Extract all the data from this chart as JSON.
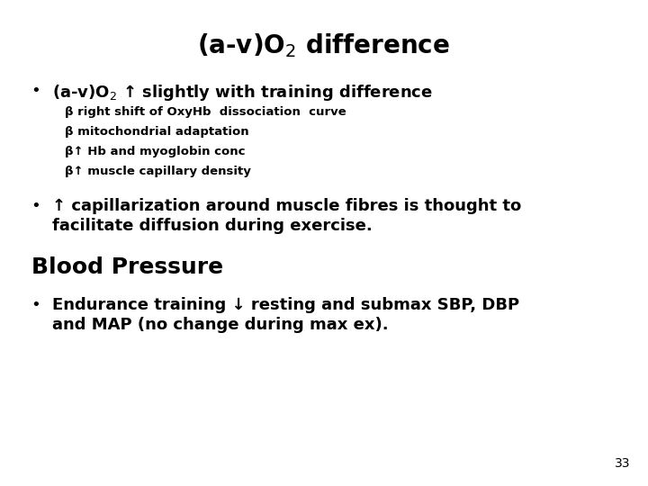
{
  "title": "(a-v)O$_2$ difference",
  "title_fontsize": 20,
  "title_fontweight": "bold",
  "bg_color": "#ffffff",
  "text_color": "#000000",
  "page_number": "33",
  "bullet1": "(a-v)O$_2$ ↑ slightly with training difference",
  "sub1": "β right shift of OxyHb  dissociation  curve",
  "sub2": "β mitochondrial adaptation",
  "sub3": "β↑ Hb and myoglobin conc",
  "sub4": "β↑ muscle capillary density",
  "bullet2_line1": "↑ capillarization around muscle fibres is thought to",
  "bullet2_line2": "facilitate diffusion during exercise.",
  "section": "Blood Pressure",
  "bullet3_line1": "Endurance training ↓ resting and submax SBP, DBP",
  "bullet3_line2": "and MAP (no change during max ex).",
  "bullet1_fontsize": 13,
  "sub_fontsize": 9.5,
  "bullet2_fontsize": 13,
  "section_fontsize": 18,
  "bullet3_fontsize": 13,
  "page_fontsize": 10
}
